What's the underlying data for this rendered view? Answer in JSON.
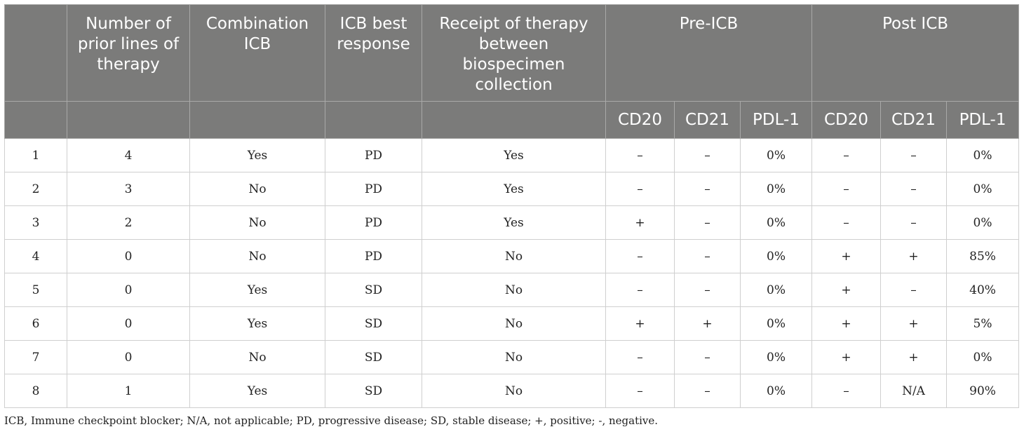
{
  "header": {
    "row1": [
      "",
      "Number of prior lines of therapy",
      "Combination ICB",
      "ICB best response",
      "Receipt of therapy between biospecimen collection",
      "Pre-ICB",
      "Post ICB"
    ],
    "row2": [
      "CD20",
      "CD21",
      "PDL-1",
      "CD20",
      "CD21",
      "PDL-1"
    ]
  },
  "rows": [
    [
      "1",
      "4",
      "Yes",
      "PD",
      "Yes",
      "–",
      "–",
      "0%",
      "–",
      "–",
      "0%"
    ],
    [
      "2",
      "3",
      "No",
      "PD",
      "Yes",
      "–",
      "–",
      "0%",
      "–",
      "–",
      "0%"
    ],
    [
      "3",
      "2",
      "No",
      "PD",
      "Yes",
      "+",
      "–",
      "0%",
      "–",
      "–",
      "0%"
    ],
    [
      "4",
      "0",
      "No",
      "PD",
      "No",
      "–",
      "–",
      "0%",
      "+",
      "+",
      "85%"
    ],
    [
      "5",
      "0",
      "Yes",
      "SD",
      "No",
      "–",
      "–",
      "0%",
      "+",
      "–",
      "40%"
    ],
    [
      "6",
      "0",
      "Yes",
      "SD",
      "No",
      "+",
      "+",
      "0%",
      "+",
      "+",
      "5%"
    ],
    [
      "7",
      "0",
      "No",
      "SD",
      "No",
      "–",
      "–",
      "0%",
      "+",
      "+",
      "0%"
    ],
    [
      "8",
      "1",
      "Yes",
      "SD",
      "No",
      "–",
      "–",
      "0%",
      "–",
      "N/A",
      "90%"
    ]
  ],
  "footnote": "ICB, Immune checkpoint blocker; N/A, not applicable; PD, progressive disease; SD, stable disease; +, positive; -, negative."
}
